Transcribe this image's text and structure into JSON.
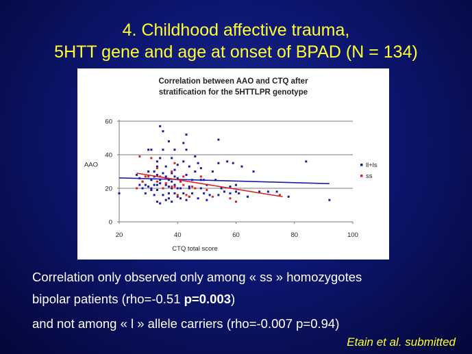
{
  "slide": {
    "title_line1": "4. Childhood affective trauma,",
    "title_line2": "5HTT gene and age at onset of BPAD (N = 134)",
    "body_line1": "Correlation only observed only among « ss » homozygotes",
    "body_line2_prefix": "bipolar patients (rho=-0.51 ",
    "body_line2_bold": "p=0.003",
    "body_line2_suffix": ")",
    "body_line3": "and not among « l » allele carriers (rho=-0.007 p=0.94)",
    "citation": "Etain et al. submitted"
  },
  "chart_data": {
    "type": "scatter",
    "title_line1": "Correlation between AAO and CTQ after",
    "title_line2": "stratification for the 5HTTLPR genotype",
    "xlabel": "CTQ total score",
    "ylabel": "AAO",
    "xlim": [
      20,
      100
    ],
    "ylim": [
      0,
      60
    ],
    "xticks": [
      "20",
      "40",
      "60",
      "80",
      "100"
    ],
    "yticks": [
      "0",
      "20",
      "40",
      "60"
    ],
    "gridlines_y": [
      20,
      40,
      60
    ],
    "legend_position": "right",
    "series": [
      {
        "name": "ll+ls",
        "color": "#1a1aa6",
        "points": [
          [
            20,
            17
          ],
          [
            26,
            28
          ],
          [
            27,
            26
          ],
          [
            27,
            22
          ],
          [
            28,
            20
          ],
          [
            28,
            24
          ],
          [
            29,
            17
          ],
          [
            29,
            22
          ],
          [
            30,
            30
          ],
          [
            30,
            21
          ],
          [
            30,
            43
          ],
          [
            31,
            43
          ],
          [
            31,
            19
          ],
          [
            31,
            25
          ],
          [
            31,
            20
          ],
          [
            32,
            22
          ],
          [
            32,
            27
          ],
          [
            32,
            30
          ],
          [
            32,
            16
          ],
          [
            33,
            12
          ],
          [
            33,
            22
          ],
          [
            33,
            28
          ],
          [
            33,
            33
          ],
          [
            33,
            36
          ],
          [
            33,
            19
          ],
          [
            34,
            23
          ],
          [
            34,
            38
          ],
          [
            34,
            57
          ],
          [
            34,
            11
          ],
          [
            34,
            25
          ],
          [
            35,
            16
          ],
          [
            35,
            20
          ],
          [
            35,
            29
          ],
          [
            35,
            54
          ],
          [
            35,
            43
          ],
          [
            36,
            13
          ],
          [
            36,
            22
          ],
          [
            36,
            26
          ],
          [
            36,
            33
          ],
          [
            36,
            27
          ],
          [
            37,
            17
          ],
          [
            37,
            48
          ],
          [
            37,
            21
          ],
          [
            37,
            25
          ],
          [
            37,
            14
          ],
          [
            38,
            24
          ],
          [
            38,
            20
          ],
          [
            38,
            38
          ],
          [
            38,
            29
          ],
          [
            38,
            12
          ],
          [
            39,
            43
          ],
          [
            39,
            22
          ],
          [
            39,
            17
          ],
          [
            39,
            27
          ],
          [
            39,
            31
          ],
          [
            40,
            20
          ],
          [
            40,
            34
          ],
          [
            40,
            26
          ],
          [
            40,
            15
          ],
          [
            41,
            20
          ],
          [
            41,
            14
          ],
          [
            41,
            24
          ],
          [
            42,
            36
          ],
          [
            42,
            47
          ],
          [
            42,
            17
          ],
          [
            43,
            43
          ],
          [
            43,
            52
          ],
          [
            43,
            28
          ],
          [
            43,
            13
          ],
          [
            44,
            20
          ],
          [
            44,
            21
          ],
          [
            44,
            33
          ],
          [
            44,
            15
          ],
          [
            45,
            17
          ],
          [
            45,
            25
          ],
          [
            46,
            39
          ],
          [
            46,
            30
          ],
          [
            47,
            35
          ],
          [
            47,
            14
          ],
          [
            48,
            25
          ],
          [
            48,
            20
          ],
          [
            48,
            32
          ],
          [
            49,
            25
          ],
          [
            49,
            17
          ],
          [
            50,
            22
          ],
          [
            50,
            13
          ],
          [
            51,
            16
          ],
          [
            52,
            30
          ],
          [
            53,
            25
          ],
          [
            54,
            16
          ],
          [
            54,
            35
          ],
          [
            54,
            49
          ],
          [
            55,
            20
          ],
          [
            56,
            18
          ],
          [
            57,
            36
          ],
          [
            58,
            21
          ],
          [
            58,
            17
          ],
          [
            59,
            35
          ],
          [
            60,
            18
          ],
          [
            60,
            22
          ],
          [
            61,
            17
          ],
          [
            62,
            33
          ],
          [
            64,
            15
          ],
          [
            66,
            30
          ],
          [
            68,
            18
          ],
          [
            71,
            18
          ],
          [
            74,
            18
          ],
          [
            78,
            15
          ],
          [
            84,
            36
          ],
          [
            92,
            13
          ]
        ],
        "trend": {
          "x": [
            20,
            92
          ],
          "y": [
            26.2,
            22.8
          ]
        }
      },
      {
        "name": "ss",
        "color": "#dd2222",
        "points": [
          [
            26,
            20
          ],
          [
            27,
            39
          ],
          [
            28,
            24
          ],
          [
            29,
            27
          ],
          [
            30,
            27
          ],
          [
            31,
            38
          ],
          [
            33,
            32
          ],
          [
            33,
            24
          ],
          [
            34,
            27
          ],
          [
            35,
            20
          ],
          [
            36,
            23
          ],
          [
            38,
            21
          ],
          [
            38,
            30
          ],
          [
            39,
            35
          ],
          [
            39,
            21
          ],
          [
            40,
            16
          ],
          [
            41,
            24
          ],
          [
            42,
            22
          ],
          [
            42,
            27
          ],
          [
            43,
            16
          ],
          [
            44,
            15
          ],
          [
            45,
            21
          ],
          [
            46,
            20
          ],
          [
            48,
            27
          ],
          [
            50,
            19
          ],
          [
            52,
            15
          ],
          [
            58,
            14
          ],
          [
            60,
            12
          ],
          [
            75,
            16
          ]
        ],
        "trend": {
          "x": [
            26,
            76
          ],
          "y": [
            29,
            15
          ]
        }
      }
    ]
  }
}
